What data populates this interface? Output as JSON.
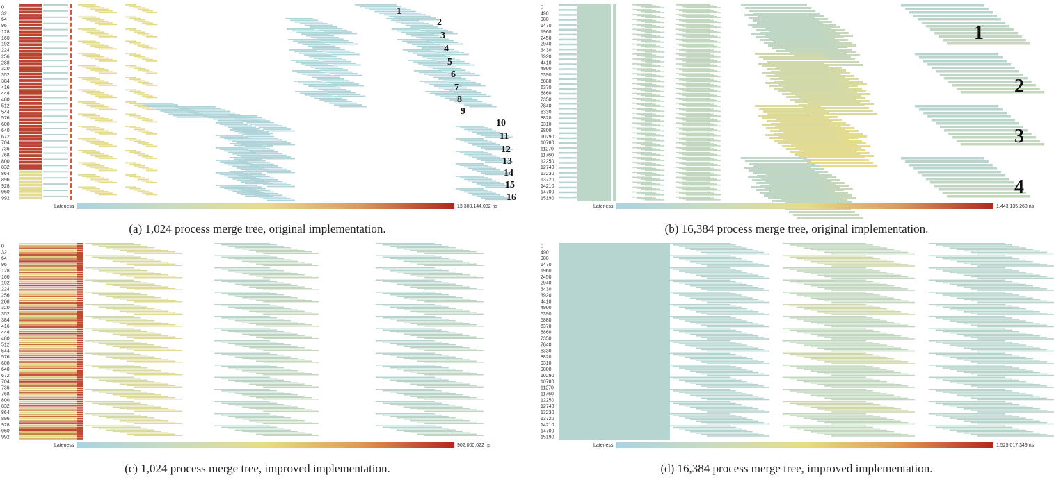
{
  "colors": {
    "low": "#a9d3e2",
    "mid": "#e8dc8a",
    "high": "#b3261e",
    "legend_stops": [
      "#a9d3e2",
      "#c8dcc0",
      "#e8dc8a",
      "#dc9a5a",
      "#b3261e"
    ]
  },
  "chart_data": [
    {
      "id": "a",
      "type": "heatmap",
      "caption": "(a) 1,024 process merge tree, original implementation.",
      "y_ticks": [
        "0",
        "32",
        "64",
        "96",
        "128",
        "160",
        "192",
        "224",
        "256",
        "288",
        "320",
        "352",
        "384",
        "416",
        "448",
        "480",
        "512",
        "544",
        "576",
        "608",
        "640",
        "672",
        "704",
        "736",
        "768",
        "800",
        "832",
        "864",
        "896",
        "928",
        "960",
        "992"
      ],
      "legend_label": "Lateness",
      "legend_max": "13,300,144,082 ns",
      "annotations": [
        "1",
        "2",
        "3",
        "4",
        "5",
        "6",
        "7",
        "8",
        "9",
        "10",
        "11",
        "12",
        "13",
        "14",
        "15",
        "16"
      ]
    },
    {
      "id": "b",
      "type": "heatmap",
      "caption": "(b) 16,384 process merge tree, original implementation.",
      "y_ticks": [
        "0",
        "490",
        "980",
        "1470",
        "1960",
        "2450",
        "2940",
        "3430",
        "3920",
        "4410",
        "4900",
        "5390",
        "5880",
        "6370",
        "6860",
        "7350",
        "7840",
        "8330",
        "8820",
        "9310",
        "9800",
        "10290",
        "10780",
        "11270",
        "11760",
        "12250",
        "12740",
        "13230",
        "13720",
        "14210",
        "14700",
        "15190"
      ],
      "legend_label": "Lateness",
      "legend_max": "1,443,135,260 ns",
      "annotations": [
        "1",
        "2",
        "3",
        "4"
      ]
    },
    {
      "id": "c",
      "type": "heatmap",
      "caption": "(c) 1,024 process merge tree, improved implementation.",
      "y_ticks": [
        "0",
        "32",
        "64",
        "96",
        "128",
        "160",
        "192",
        "224",
        "256",
        "288",
        "320",
        "352",
        "384",
        "416",
        "448",
        "480",
        "512",
        "544",
        "576",
        "608",
        "640",
        "672",
        "704",
        "736",
        "768",
        "800",
        "832",
        "864",
        "896",
        "928",
        "960",
        "992"
      ],
      "legend_label": "Lateness",
      "legend_max": "902,000,022 ns",
      "annotations": []
    },
    {
      "id": "d",
      "type": "heatmap",
      "caption": "(d) 16,384 process merge tree, improved implementation.",
      "y_ticks": [
        "0",
        "490",
        "980",
        "1470",
        "1960",
        "2450",
        "2940",
        "3430",
        "3920",
        "4410",
        "4900",
        "5390",
        "5880",
        "6370",
        "6860",
        "7350",
        "7840",
        "8330",
        "8820",
        "9310",
        "9800",
        "10290",
        "10780",
        "11270",
        "11760",
        "12250",
        "12740",
        "13230",
        "13720",
        "14210",
        "14700",
        "15190"
      ],
      "legend_label": "Lateness",
      "legend_max": "1,525,017,349 ns",
      "annotations": []
    }
  ]
}
